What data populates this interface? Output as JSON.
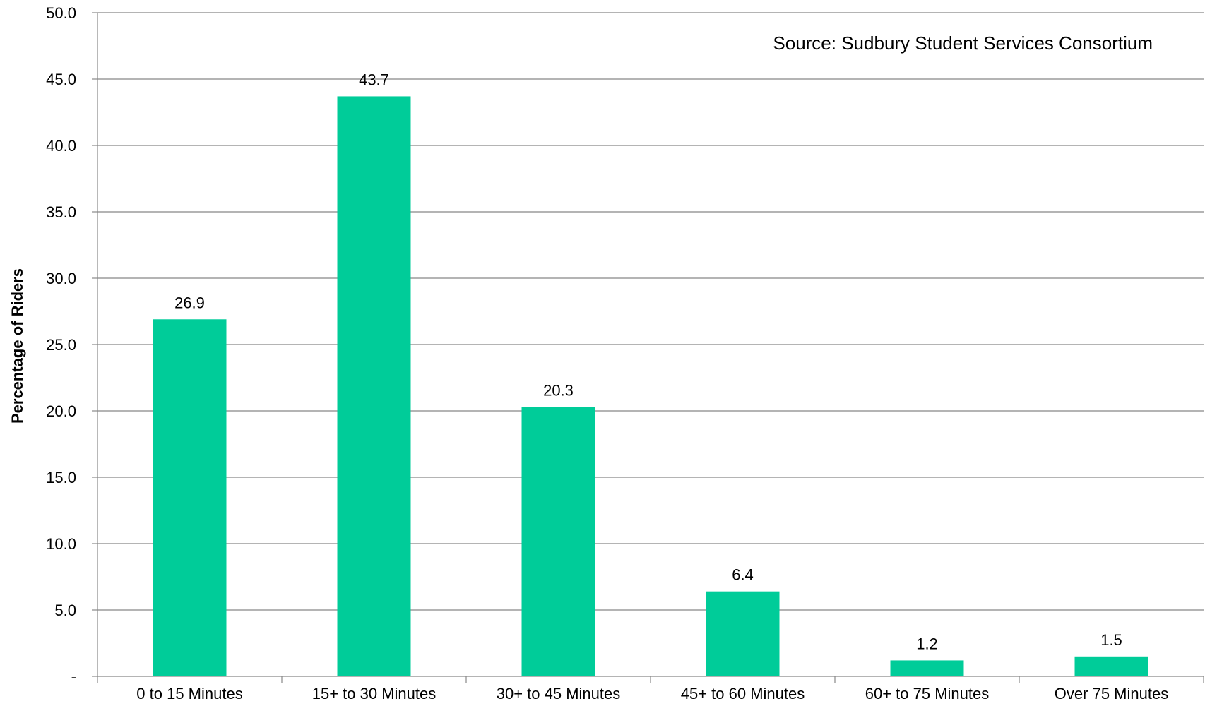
{
  "chart_data": {
    "type": "bar",
    "categories": [
      "0 to 15 Minutes",
      "15+ to 30 Minutes",
      "30+ to 45 Minutes",
      "45+ to 60 Minutes",
      "60+ to 75 Minutes",
      "Over 75 Minutes"
    ],
    "values": [
      26.9,
      43.7,
      20.3,
      6.4,
      1.2,
      1.5
    ],
    "data_labels": [
      "26.9",
      "43.7",
      "20.3",
      "6.4",
      "1.2",
      "1.5"
    ],
    "ylabel": "Percentage of Riders",
    "xlabel": "",
    "ylim": [
      0,
      50
    ],
    "yticks": [
      0,
      5,
      10,
      15,
      20,
      25,
      30,
      35,
      40,
      45,
      50
    ],
    "ytick_labels": [
      "-",
      "5.0",
      "10.0",
      "15.0",
      "20.0",
      "25.0",
      "30.0",
      "35.0",
      "40.0",
      "45.0",
      "50.0"
    ],
    "grid": true,
    "legend": "none",
    "annotation": "Source: Sudbury Student Services Consortium",
    "bar_color": "#00CC99",
    "grid_color": "#888888",
    "axis_color": "#888888"
  }
}
